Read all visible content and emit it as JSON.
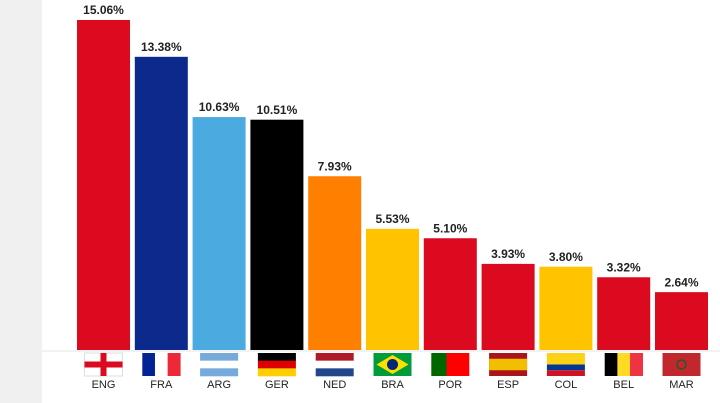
{
  "chart_data": {
    "type": "bar",
    "categories": [
      "ENG",
      "FRA",
      "ARG",
      "GER",
      "NED",
      "BRA",
      "POR",
      "ESP",
      "COL",
      "BEL",
      "MAR"
    ],
    "values": [
      15.06,
      13.38,
      10.63,
      10.51,
      7.93,
      5.53,
      5.1,
      3.93,
      3.8,
      3.32,
      2.64
    ],
    "value_labels": [
      "15.06%",
      "13.38%",
      "10.63%",
      "10.51%",
      "7.93%",
      "5.53%",
      "5.10%",
      "3.93%",
      "3.80%",
      "3.32%",
      "2.64%"
    ],
    "colors": [
      "#dc0a1e",
      "#0b2a8c",
      "#4baae0",
      "#000000",
      "#ff7f00",
      "#ffc300",
      "#dc0a1e",
      "#dc0a1e",
      "#ffc300",
      "#dc0a1e",
      "#dc0a1e"
    ]
  }
}
